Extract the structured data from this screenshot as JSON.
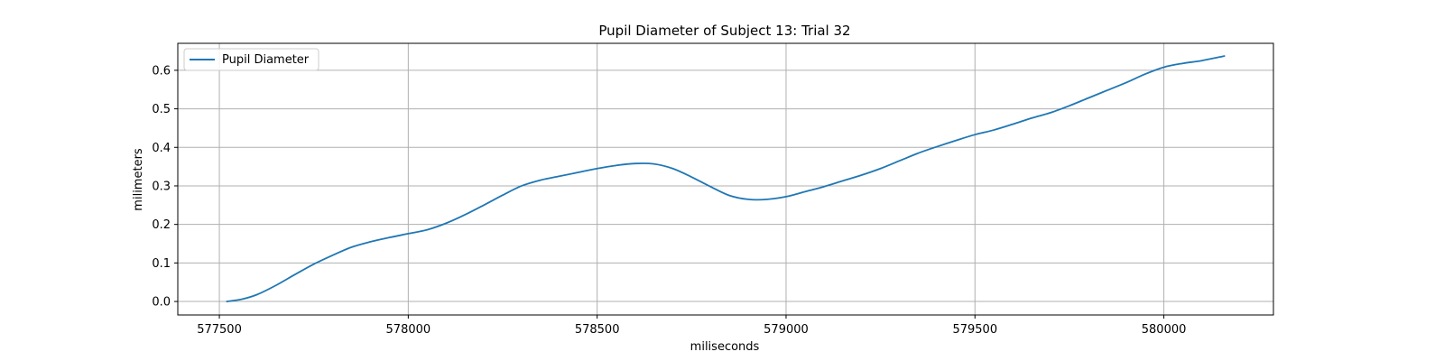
{
  "chart_data": {
    "type": "line",
    "title": "Pupil Diameter of Subject 13: Trial 32",
    "xlabel": "miliseconds",
    "ylabel": "milimeters",
    "xlim": [
      577390,
      580290
    ],
    "ylim": [
      -0.035,
      0.67
    ],
    "xticks": [
      577500,
      578000,
      578500,
      579000,
      579500,
      580000
    ],
    "yticks": [
      0.0,
      0.1,
      0.2,
      0.3,
      0.4,
      0.5,
      0.6
    ],
    "xtick_labels": [
      "577500",
      "578000",
      "578500",
      "579000",
      "579500",
      "580000"
    ],
    "ytick_labels": [
      "0.0",
      "0.1",
      "0.2",
      "0.3",
      "0.4",
      "0.5",
      "0.6"
    ],
    "grid": true,
    "legend": "top-left",
    "series": [
      {
        "name": "Pupil Diameter",
        "color": "#1f77b4",
        "x": [
          577520,
          577560,
          577600,
          577650,
          577700,
          577750,
          577800,
          577850,
          577900,
          577950,
          578000,
          578050,
          578100,
          578150,
          578200,
          578250,
          578300,
          578350,
          578400,
          578450,
          578500,
          578550,
          578600,
          578650,
          578700,
          578750,
          578800,
          578850,
          578900,
          578950,
          579000,
          579050,
          579100,
          579150,
          579200,
          579250,
          579300,
          579350,
          579400,
          579450,
          579500,
          579550,
          579600,
          579650,
          579700,
          579750,
          579800,
          579850,
          579900,
          579950,
          580000,
          580050,
          580100,
          580160
        ],
        "y": [
          0.0,
          0.006,
          0.018,
          0.042,
          0.07,
          0.097,
          0.12,
          0.141,
          0.155,
          0.166,
          0.176,
          0.186,
          0.203,
          0.225,
          0.25,
          0.276,
          0.3,
          0.315,
          0.325,
          0.335,
          0.345,
          0.353,
          0.358,
          0.357,
          0.345,
          0.323,
          0.298,
          0.275,
          0.265,
          0.265,
          0.272,
          0.285,
          0.298,
          0.313,
          0.328,
          0.345,
          0.365,
          0.385,
          0.402,
          0.418,
          0.433,
          0.445,
          0.46,
          0.476,
          0.49,
          0.508,
          0.528,
          0.548,
          0.568,
          0.59,
          0.608,
          0.618,
          0.625,
          0.637
        ]
      }
    ]
  }
}
